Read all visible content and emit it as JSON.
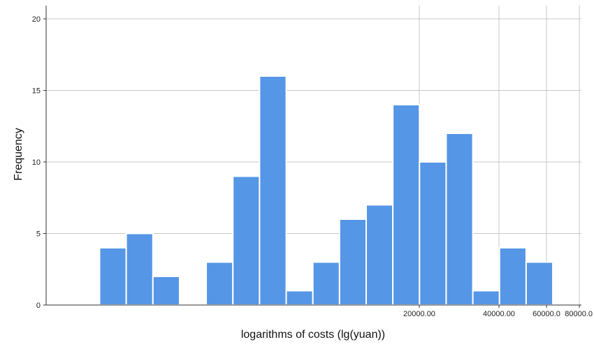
{
  "chart_data": {
    "type": "bar",
    "title": "",
    "xlabel": "logarithms of costs (lg(yuan))",
    "ylabel": "Frequency",
    "ylim": [
      0,
      20
    ],
    "yticks": [
      0,
      5,
      10,
      15,
      20
    ],
    "xtick_labels": [
      "20000.00",
      "40000.00",
      "60000.0",
      "80000.0"
    ],
    "grid": {
      "horizontal": true,
      "vertical_at_x_ticks": true
    },
    "bar_color": "#5596e6",
    "bar_edge_color": "#ffffff",
    "bins": [
      {
        "bin": 1,
        "value": 4
      },
      {
        "bin": 2,
        "value": 5
      },
      {
        "bin": 3,
        "value": 2
      },
      {
        "bin": 4,
        "value": 0
      },
      {
        "bin": 5,
        "value": 3
      },
      {
        "bin": 6,
        "value": 9
      },
      {
        "bin": 7,
        "value": 16
      },
      {
        "bin": 8,
        "value": 1
      },
      {
        "bin": 9,
        "value": 3
      },
      {
        "bin": 10,
        "value": 6
      },
      {
        "bin": 11,
        "value": 7
      },
      {
        "bin": 12,
        "value": 14
      },
      {
        "bin": 13,
        "value": 10
      },
      {
        "bin": 14,
        "value": 12
      },
      {
        "bin": 15,
        "value": 1
      },
      {
        "bin": 16,
        "value": 4
      },
      {
        "bin": 17,
        "value": 3
      }
    ]
  }
}
